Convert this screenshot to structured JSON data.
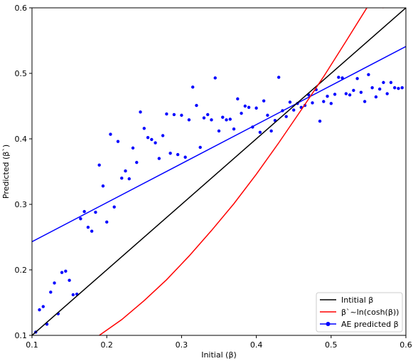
{
  "chart_data": {
    "type": "scatter",
    "xlabel": "Initial (β)",
    "ylabel": "Predicted (β`)",
    "xlim": [
      0.1,
      0.6
    ],
    "ylim": [
      0.1,
      0.6
    ],
    "xticks": [
      0.1,
      0.2,
      0.3,
      0.4,
      0.5,
      0.6
    ],
    "yticks": [
      0.1,
      0.2,
      0.3,
      0.4,
      0.5,
      0.6
    ],
    "xtick_labels": [
      "0.1",
      "0.2",
      "0.3",
      "0.4",
      "0.5",
      "0.6"
    ],
    "ytick_labels": [
      "0.1",
      "0.2",
      "0.3",
      "0.4",
      "0.5",
      "0.6"
    ],
    "grid": false,
    "legend_position": "bottom-right",
    "series": [
      {
        "name": "Intitial β",
        "kind": "line",
        "color": "#000000",
        "x": [
          0.1,
          0.6
        ],
        "y": [
          0.1,
          0.6
        ]
      },
      {
        "name": "β`~ln(cosh(β))",
        "kind": "line",
        "color": "#ff0000",
        "x": [
          0.19,
          0.22,
          0.25,
          0.28,
          0.31,
          0.34,
          0.37,
          0.4,
          0.43,
          0.46,
          0.49,
          0.52,
          0.55,
          0.57
        ],
        "y": [
          0.1,
          0.124,
          0.153,
          0.185,
          0.221,
          0.26,
          0.301,
          0.346,
          0.394,
          0.444,
          0.495,
          0.549,
          0.604,
          0.6
        ]
      },
      {
        "name": "AE predicted β",
        "kind": "scatter-fit",
        "color": "#0000ff",
        "fit": {
          "x": [
            0.1,
            0.6
          ],
          "y": [
            0.243,
            0.541
          ]
        },
        "points": {
          "x": [
            0.105,
            0.11,
            0.115,
            0.12,
            0.125,
            0.13,
            0.135,
            0.14,
            0.145,
            0.15,
            0.155,
            0.16,
            0.165,
            0.17,
            0.175,
            0.18,
            0.185,
            0.19,
            0.195,
            0.2,
            0.205,
            0.21,
            0.215,
            0.22,
            0.225,
            0.23,
            0.235,
            0.24,
            0.245,
            0.25,
            0.255,
            0.26,
            0.265,
            0.27,
            0.275,
            0.28,
            0.285,
            0.29,
            0.295,
            0.3,
            0.305,
            0.31,
            0.315,
            0.32,
            0.325,
            0.33,
            0.335,
            0.34,
            0.345,
            0.35,
            0.355,
            0.36,
            0.365,
            0.37,
            0.375,
            0.38,
            0.385,
            0.39,
            0.395,
            0.4,
            0.405,
            0.41,
            0.415,
            0.42,
            0.425,
            0.43,
            0.435,
            0.44,
            0.445,
            0.45,
            0.455,
            0.46,
            0.465,
            0.47,
            0.475,
            0.48,
            0.485,
            0.49,
            0.495,
            0.5,
            0.505,
            0.51,
            0.515,
            0.52,
            0.525,
            0.53,
            0.535,
            0.54,
            0.545,
            0.55,
            0.555,
            0.56,
            0.565,
            0.57,
            0.575,
            0.58,
            0.585,
            0.59,
            0.595
          ],
          "y": [
            0.105,
            0.139,
            0.144,
            0.117,
            0.166,
            0.18,
            0.133,
            0.196,
            0.198,
            0.184,
            0.162,
            0.163,
            0.278,
            0.289,
            0.265,
            0.259,
            0.288,
            0.36,
            0.328,
            0.273,
            0.407,
            0.296,
            0.396,
            0.34,
            0.351,
            0.339,
            0.386,
            0.364,
            0.441,
            0.416,
            0.402,
            0.399,
            0.394,
            0.37,
            0.405,
            0.438,
            0.378,
            0.437,
            0.376,
            0.436,
            0.372,
            0.429,
            0.479,
            0.451,
            0.387,
            0.432,
            0.437,
            0.429,
            0.493,
            0.412,
            0.433,
            0.429,
            0.43,
            0.415,
            0.461,
            0.439,
            0.45,
            0.448,
            0.418,
            0.447,
            0.41,
            0.458,
            0.436,
            0.412,
            0.428,
            0.494,
            0.443,
            0.434,
            0.456,
            0.444,
            0.454,
            0.448,
            0.451,
            0.467,
            0.455,
            0.475,
            0.427,
            0.457,
            0.465,
            0.454,
            0.468,
            0.494,
            0.493,
            0.469,
            0.467,
            0.474,
            0.492,
            0.471,
            0.457,
            0.498,
            0.478,
            0.464,
            0.476,
            0.486,
            0.469,
            0.486,
            0.478,
            0.477,
            0.478
          ]
        }
      }
    ]
  }
}
